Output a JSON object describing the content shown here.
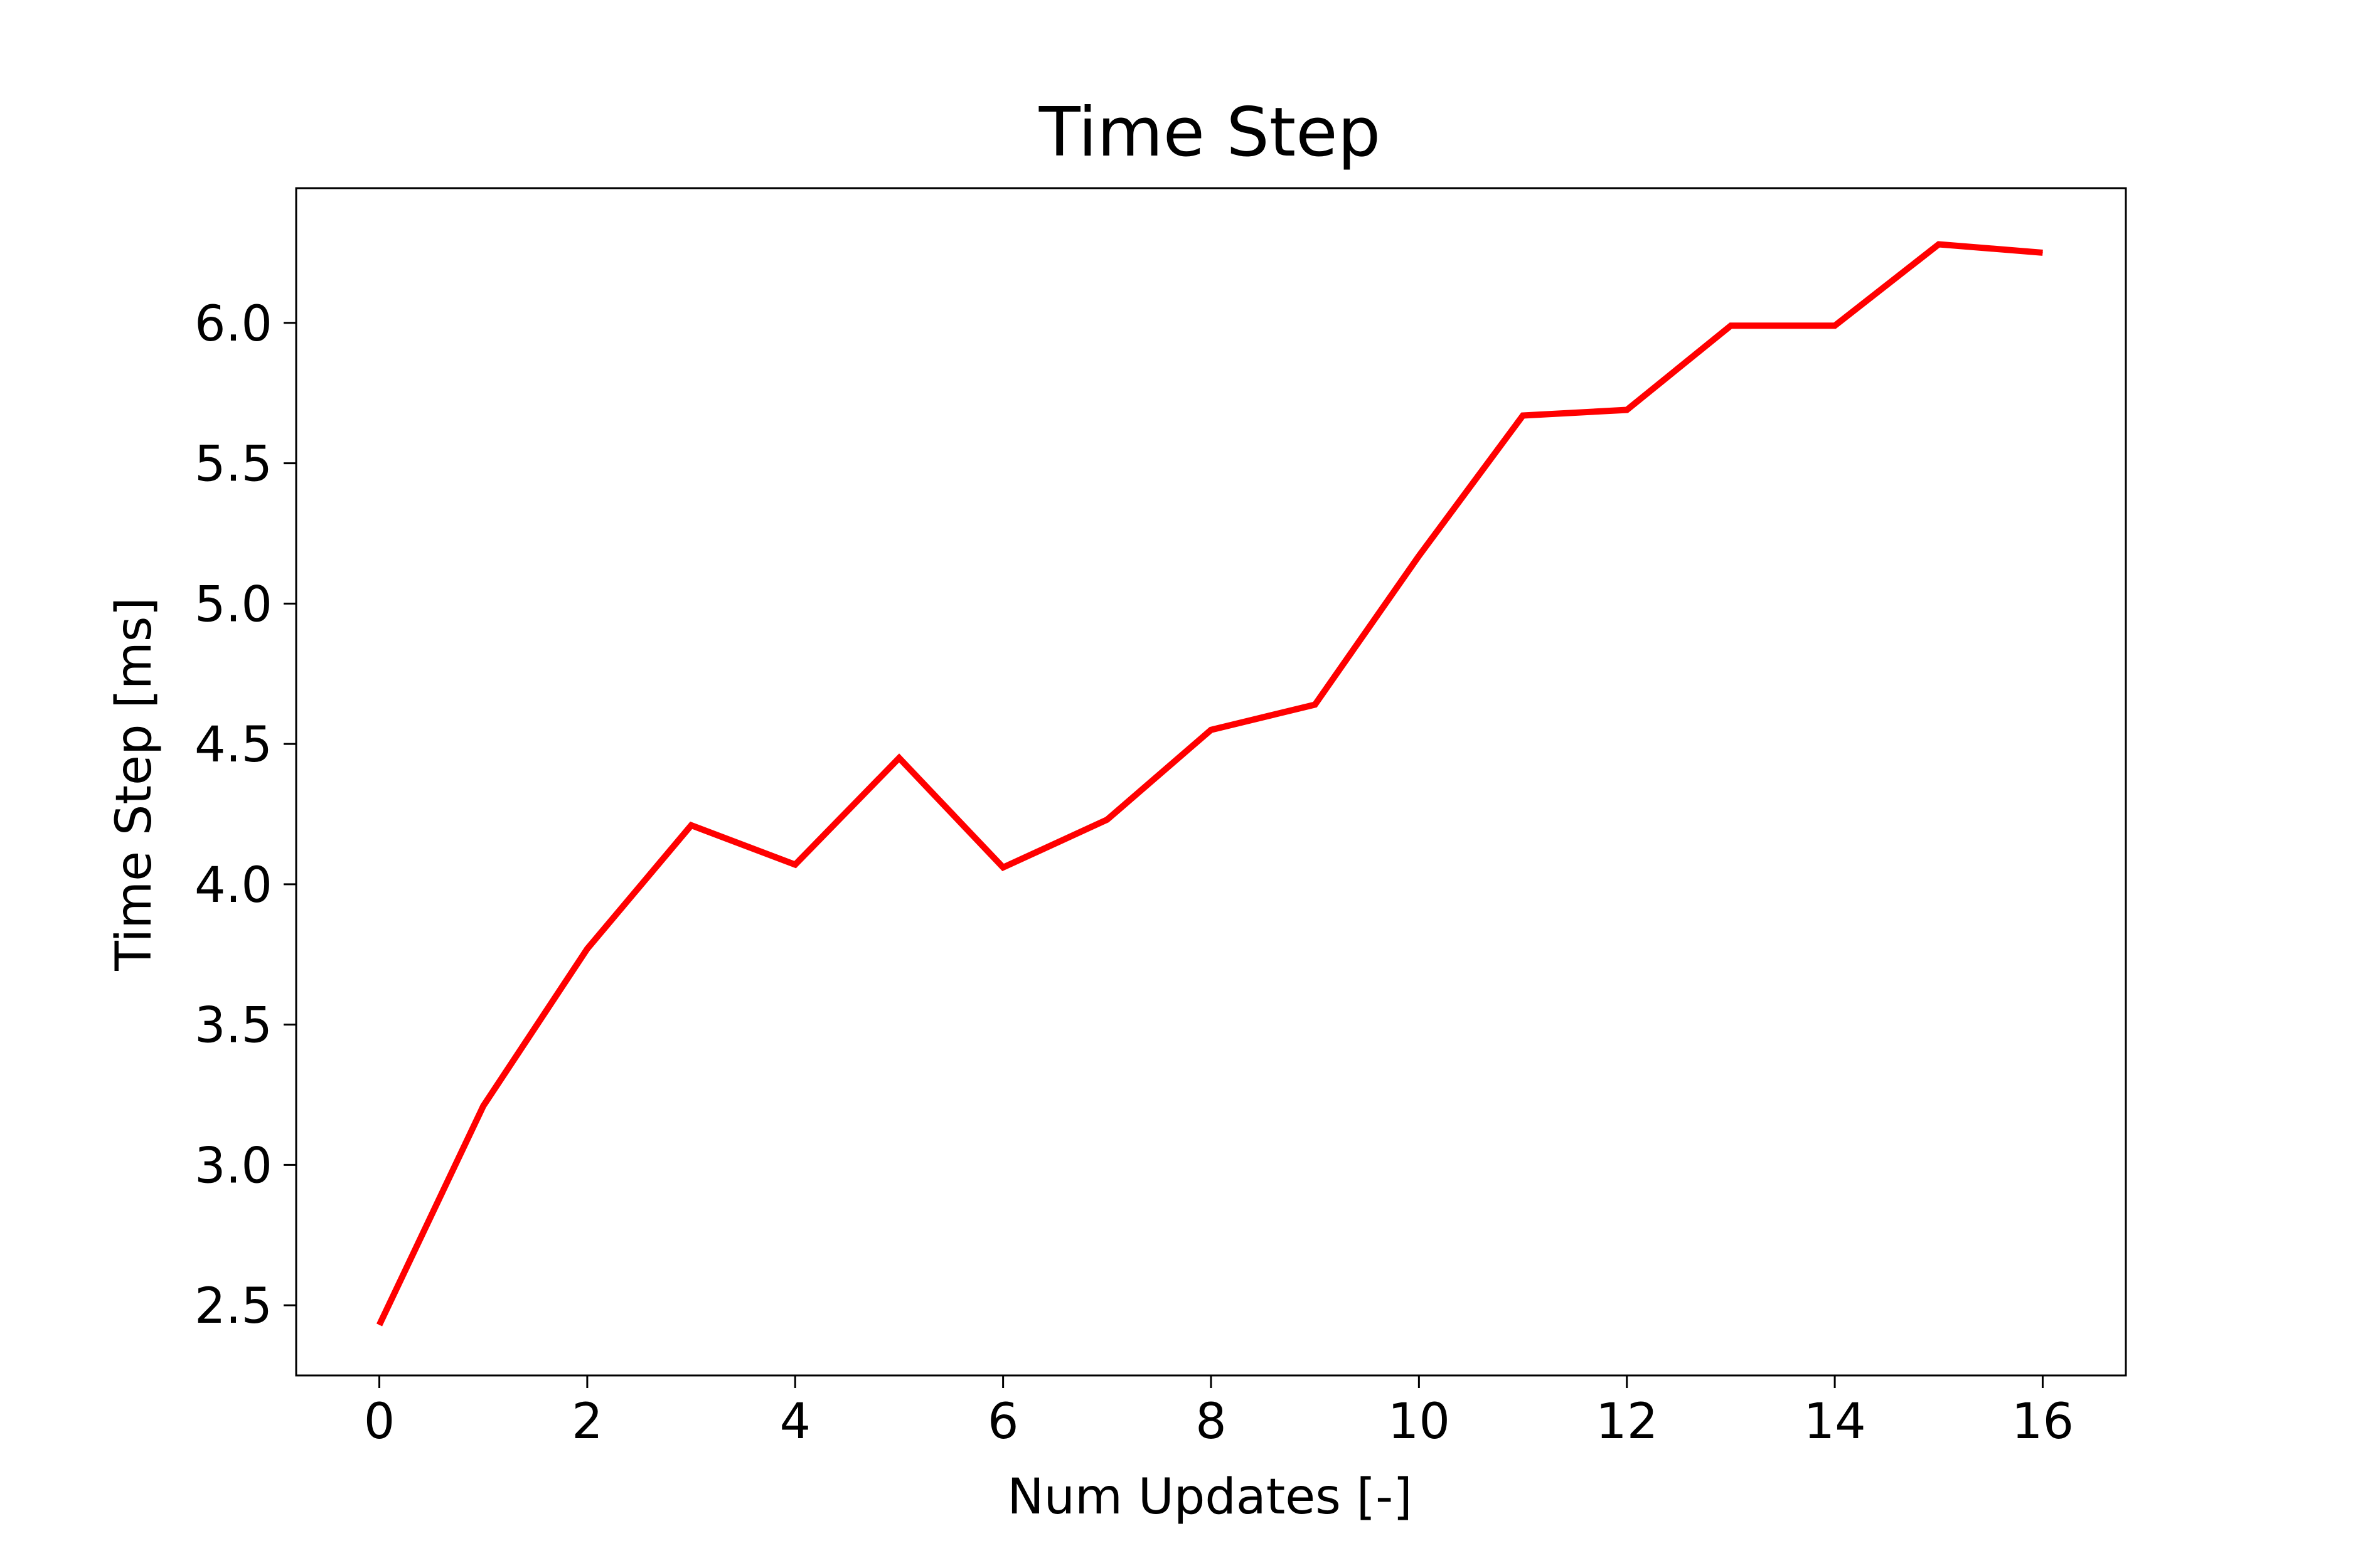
{
  "chart_data": {
    "type": "line",
    "title": "Time Step",
    "xlabel": "Num Updates [-]",
    "ylabel": "Time Step [ms]",
    "xlim": [
      -0.8,
      16.8
    ],
    "ylim": [
      2.25,
      6.48
    ],
    "xticks": [
      "0",
      "2",
      "4",
      "6",
      "8",
      "10",
      "12",
      "14",
      "16"
    ],
    "yticks": [
      "2.5",
      "3.0",
      "3.5",
      "4.0",
      "4.5",
      "5.0",
      "5.5",
      "6.0"
    ],
    "grid": false,
    "series": [
      {
        "color": "#ff0000",
        "x": [
          0,
          1,
          2,
          3,
          4,
          5,
          6,
          7,
          8,
          9,
          10,
          11,
          12,
          13,
          14,
          15,
          16
        ],
        "y": [
          2.43,
          3.21,
          3.77,
          4.21,
          4.07,
          4.45,
          4.06,
          4.23,
          4.55,
          4.64,
          5.17,
          5.67,
          5.69,
          5.99,
          5.99,
          6.28,
          6.25
        ]
      }
    ]
  }
}
